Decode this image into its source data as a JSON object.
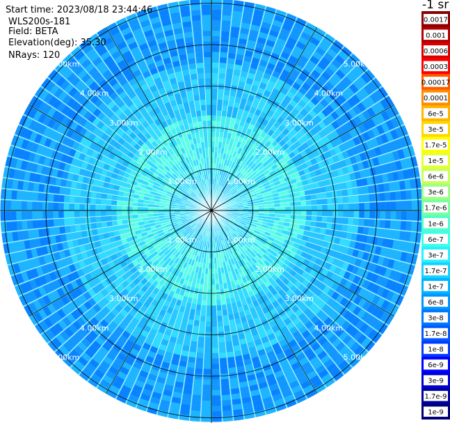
{
  "header": {
    "start_time": "Start time: 2023/08/18 23:44:46",
    "instrument": "WLS200s-181",
    "field": "Field: BETA",
    "elevation": "Elevation(deg): 35.30",
    "nrays": "NRays: 120"
  },
  "colorbar": {
    "unit_label": "-1 sr",
    "labels": [
      "0.0017",
      "0.001",
      "0.0006",
      "0.0003",
      "0.00017",
      "0.0001",
      "6e-5",
      "3e-5",
      "1.7e-5",
      "1e-5",
      "6e-6",
      "3e-6",
      "1.7e-6",
      "1e-6",
      "6e-7",
      "3e-7",
      "1.7e-7",
      "1e-7",
      "6e-8",
      "3e-8",
      "1.7e-8",
      "1e-8",
      "6e-9",
      "3e-9",
      "1.7e-9",
      "1e-9"
    ],
    "colors": [
      "#8b0000",
      "#b30000",
      "#d90000",
      "#ff0000",
      "#ff5a00",
      "#ff8c00",
      "#ffb400",
      "#ffd700",
      "#ffff00",
      "#e6ff33",
      "#c8ff5a",
      "#a0ff82",
      "#78ffa0",
      "#50ffc8",
      "#3cffe6",
      "#28f0ff",
      "#14d2ff",
      "#00b4ff",
      "#0096ff",
      "#0078ff",
      "#005aff",
      "#003cff",
      "#0000ff",
      "#0000d2",
      "#0000a0",
      "#000078"
    ]
  },
  "chart_data": {
    "type": "heatmap",
    "projection": "polar (PPI scan)",
    "field": "BETA",
    "elevation_deg": 35.3,
    "nrays": 120,
    "range_rings_km": [
      1.0,
      2.0,
      3.0,
      4.0,
      5.0
    ],
    "ring_labels": [
      "1.00km",
      "2.00km",
      "3.00km",
      "4.00km",
      "5.00km"
    ],
    "max_range_km": 5.1,
    "spoke_interval_deg": 30,
    "dominant_values": "mostly 1e-7 to 1e-8 (cyan to blue), higher near center"
  }
}
